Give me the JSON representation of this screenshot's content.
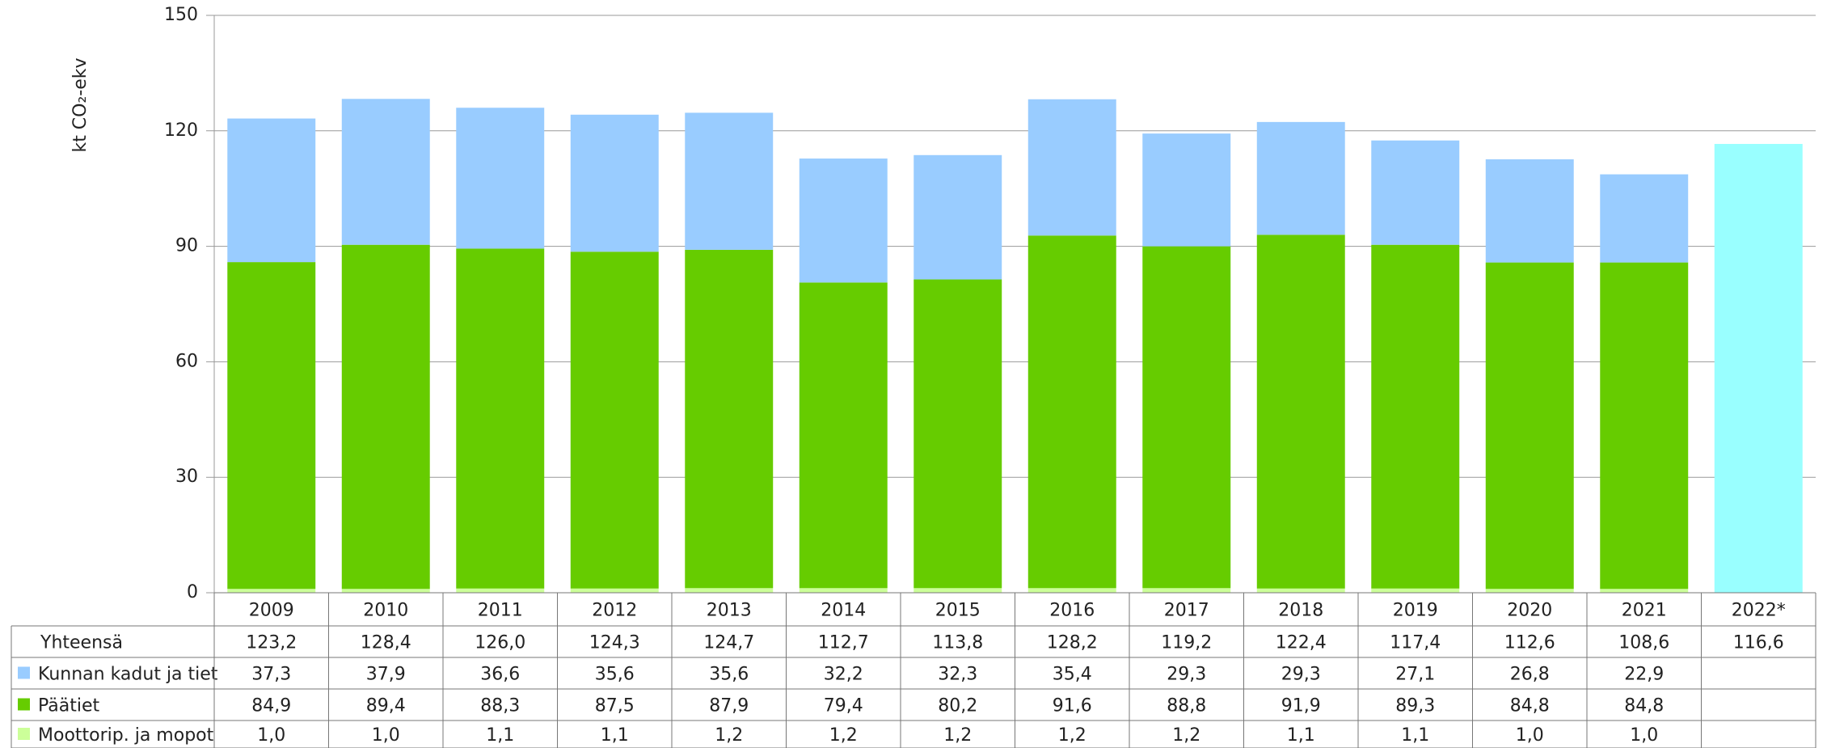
{
  "chart_data": {
    "type": "stacked_bar_table",
    "ylabel": "kt CO₂-ekv",
    "categories": [
      "2009",
      "2010",
      "2011",
      "2012",
      "2013",
      "2014",
      "2015",
      "2016",
      "2017",
      "2018",
      "2019",
      "2020",
      "2021",
      "2022*"
    ],
    "ylim": [
      0,
      150
    ],
    "yticks": [
      0,
      30,
      60,
      90,
      120,
      150
    ],
    "grid": true,
    "total": {
      "name": "Yhteensä",
      "color": "#99ffff",
      "values": [
        123.2,
        128.4,
        126.0,
        124.3,
        124.7,
        112.7,
        113.8,
        128.2,
        119.2,
        122.4,
        117.4,
        112.6,
        108.6,
        116.6
      ],
      "value_labels": [
        "123,2",
        "128,4",
        "126,0",
        "124,3",
        "124,7",
        "112,7",
        "113,8",
        "128,2",
        "119,2",
        "122,4",
        "117,4",
        "112,6",
        "108,6",
        "116,6"
      ]
    },
    "series": [
      {
        "name": "Kunnan kadut ja tiet",
        "color": "#99ccff",
        "values": [
          37.3,
          37.9,
          36.6,
          35.6,
          35.6,
          32.2,
          32.3,
          35.4,
          29.3,
          29.3,
          27.1,
          26.8,
          22.9,
          null
        ],
        "value_labels": [
          "37,3",
          "37,9",
          "36,6",
          "35,6",
          "35,6",
          "32,2",
          "32,3",
          "35,4",
          "29,3",
          "29,3",
          "27,1",
          "26,8",
          "22,9",
          null
        ]
      },
      {
        "name": "Päätiet",
        "color": "#66cc00",
        "values": [
          84.9,
          89.4,
          88.3,
          87.5,
          87.9,
          79.4,
          80.2,
          91.6,
          88.8,
          91.9,
          89.3,
          84.8,
          84.8,
          null
        ],
        "value_labels": [
          "84,9",
          "89,4",
          "88,3",
          "87,5",
          "87,9",
          "79,4",
          "80,2",
          "91,6",
          "88,8",
          "91,9",
          "89,3",
          "84,8",
          "84,8",
          null
        ]
      },
      {
        "name": "Moottorip. ja mopot",
        "color": "#ccff99",
        "values": [
          1.0,
          1.0,
          1.1,
          1.1,
          1.2,
          1.2,
          1.2,
          1.2,
          1.2,
          1.1,
          1.1,
          1.0,
          1.0,
          null
        ],
        "value_labels": [
          "1,0",
          "1,0",
          "1,1",
          "1,1",
          "1,2",
          "1,2",
          "1,2",
          "1,2",
          "1,2",
          "1,1",
          "1,1",
          "1,0",
          "1,0",
          null
        ]
      }
    ]
  }
}
